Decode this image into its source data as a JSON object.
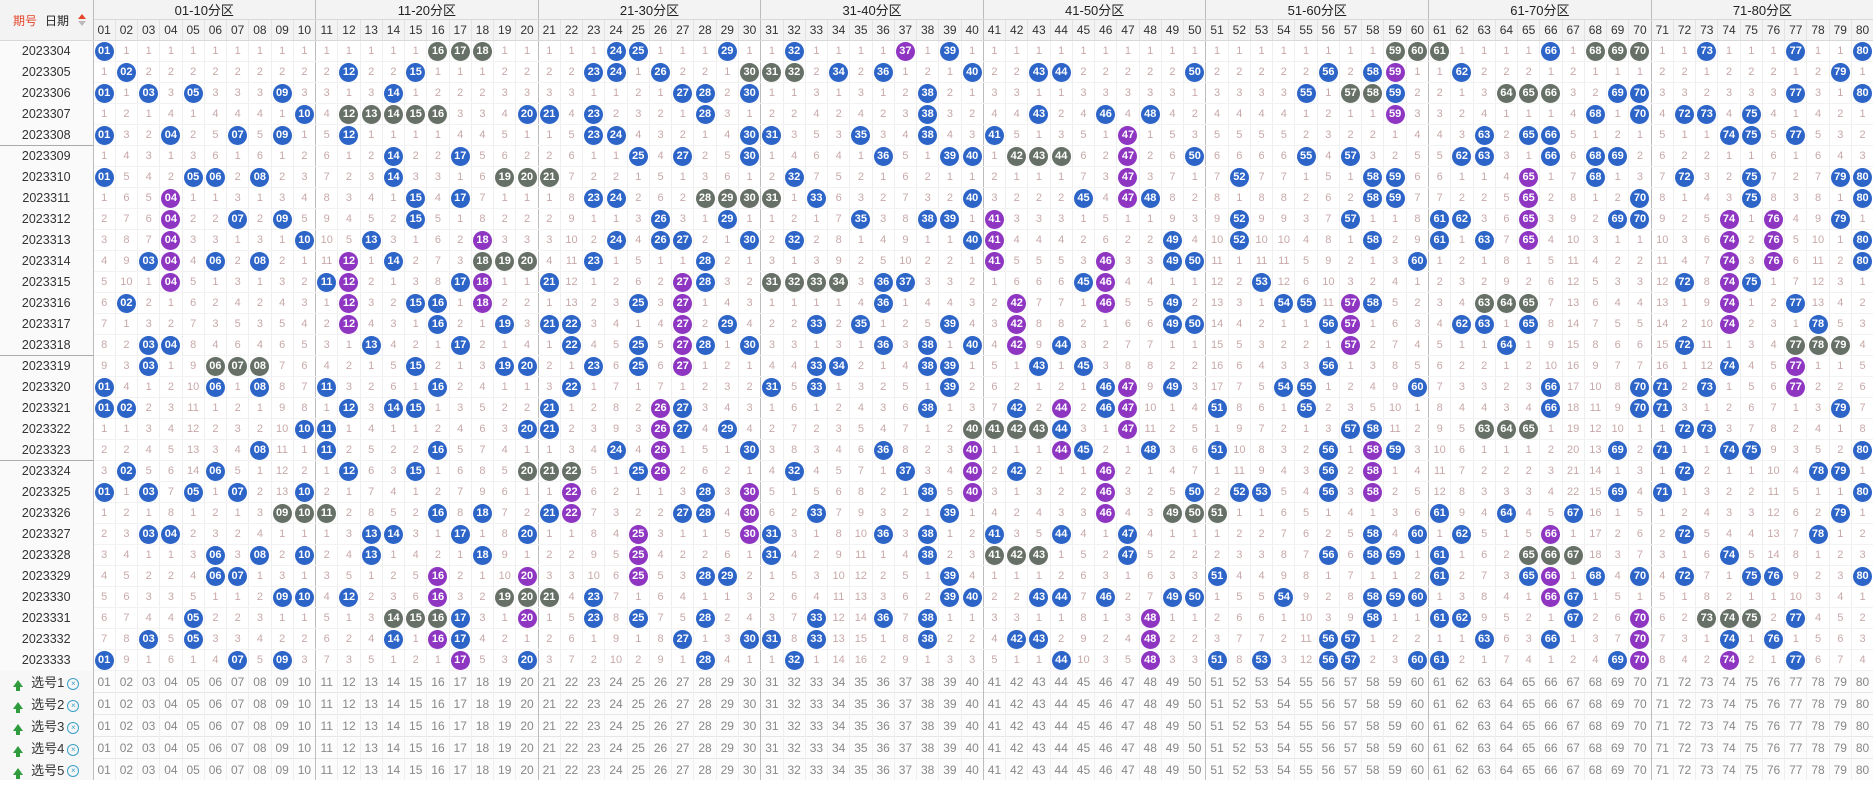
{
  "header": {
    "tab_period": "期号",
    "tab_date": "日期"
  },
  "zones": [
    "01-10分区",
    "11-20分区",
    "21-30分区",
    "31-40分区",
    "41-50分区",
    "51-60分区",
    "61-70分区",
    "71-80分区"
  ],
  "columns": [
    "01",
    "02",
    "03",
    "04",
    "05",
    "06",
    "07",
    "08",
    "09",
    "10",
    "11",
    "12",
    "13",
    "14",
    "15",
    "16",
    "17",
    "18",
    "19",
    "20",
    "21",
    "22",
    "23",
    "24",
    "25",
    "26",
    "27",
    "28",
    "29",
    "30",
    "31",
    "32",
    "33",
    "34",
    "35",
    "36",
    "37",
    "38",
    "39",
    "40",
    "41",
    "42",
    "43",
    "44",
    "45",
    "46",
    "47",
    "48",
    "49",
    "50",
    "51",
    "52",
    "53",
    "54",
    "55",
    "56",
    "57",
    "58",
    "59",
    "60",
    "61",
    "62",
    "63",
    "64",
    "65",
    "66",
    "67",
    "68",
    "69",
    "70",
    "71",
    "72",
    "73",
    "74",
    "75",
    "76",
    "77",
    "78",
    "79",
    "80"
  ],
  "colors": {
    "blue": "#2c64c8",
    "purple": "#8e35c2",
    "gray": "#667066",
    "miss_text": "#c8a8a8"
  },
  "rows": [
    {
      "p": "2023304",
      "balls": {
        "01": "b",
        "16": "g",
        "17": "g",
        "18": "g",
        "24": "b",
        "25": "b",
        "29": "b",
        "32": "b",
        "37": "p",
        "39": "b",
        "59": "g",
        "60": "g",
        "61": "g",
        "66": "b",
        "68": "g",
        "69": "g",
        "70": "g",
        "73": "b",
        "77": "b",
        "80": "b"
      }
    },
    {
      "p": "2023305",
      "balls": {
        "02": "b",
        "12": "b",
        "15": "b",
        "23": "b",
        "24": "b",
        "26": "b",
        "30": "g",
        "31": "g",
        "32": "g",
        "34": "b",
        "36": "b",
        "40": "b",
        "43": "b",
        "44": "b",
        "50": "b",
        "56": "b",
        "58": "b",
        "59": "p",
        "62": "b",
        "79": "b"
      }
    },
    {
      "p": "2023306",
      "balls": {
        "01": "b",
        "03": "b",
        "05": "b",
        "09": "b",
        "14": "b",
        "27": "b",
        "28": "b",
        "30": "b",
        "38": "b",
        "55": "b",
        "57": "g",
        "58": "g",
        "59": "b",
        "64": "g",
        "65": "g",
        "66": "g",
        "69": "b",
        "70": "b",
        "77": "b",
        "80": "b"
      }
    },
    {
      "p": "2023307",
      "balls": {
        "10": "b",
        "12": "g",
        "13": "g",
        "14": "g",
        "15": "g",
        "16": "g",
        "20": "b",
        "21": "b",
        "23": "b",
        "28": "b",
        "38": "b",
        "43": "b",
        "46": "b",
        "48": "b",
        "59": "p",
        "68": "b",
        "70": "b",
        "72": "b",
        "73": "b",
        "75": "b"
      }
    },
    {
      "p": "2023308",
      "balls": {
        "01": "b",
        "04": "b",
        "07": "b",
        "09": "b",
        "12": "b",
        "23": "b",
        "24": "b",
        "30": "b",
        "31": "b",
        "35": "b",
        "38": "b",
        "41": "b",
        "47": "p",
        "63": "b",
        "65": "b",
        "66": "b",
        "74": "b",
        "75": "b",
        "77": "b"
      }
    },
    {
      "p": "2023309",
      "sep": true,
      "balls": {
        "14": "b",
        "17": "b",
        "25": "b",
        "27": "b",
        "30": "b",
        "36": "b",
        "39": "b",
        "40": "b",
        "42": "g",
        "43": "g",
        "44": "g",
        "47": "p",
        "50": "b",
        "55": "b",
        "57": "b",
        "62": "b",
        "63": "b",
        "66": "b",
        "68": "b",
        "69": "b"
      }
    },
    {
      "p": "2023310",
      "balls": {
        "01": "b",
        "05": "b",
        "06": "b",
        "08": "b",
        "14": "b",
        "19": "g",
        "20": "g",
        "21": "g",
        "32": "b",
        "47": "p",
        "52": "b",
        "58": "b",
        "59": "b",
        "65": "p",
        "68": "b",
        "72": "b",
        "75": "b",
        "79": "b",
        "80": "b"
      }
    },
    {
      "p": "2023311",
      "balls": {
        "04": "p",
        "15": "b",
        "17": "b",
        "23": "b",
        "24": "b",
        "28": "g",
        "29": "g",
        "30": "g",
        "31": "g",
        "33": "b",
        "40": "b",
        "45": "b",
        "47": "p",
        "48": "b",
        "58": "b",
        "59": "b",
        "65": "p",
        "70": "b",
        "75": "b",
        "80": "b"
      }
    },
    {
      "p": "2023312",
      "balls": {
        "04": "p",
        "07": "b",
        "09": "b",
        "15": "b",
        "26": "b",
        "29": "b",
        "35": "b",
        "38": "b",
        "39": "b",
        "41": "p",
        "52": "b",
        "57": "b",
        "61": "b",
        "62": "b",
        "65": "p",
        "69": "b",
        "70": "b",
        "74": "p",
        "76": "p",
        "79": "b"
      }
    },
    {
      "p": "2023313",
      "balls": {
        "04": "p",
        "10": "b",
        "13": "b",
        "18": "p",
        "24": "b",
        "26": "b",
        "27": "b",
        "30": "b",
        "32": "b",
        "40": "b",
        "41": "p",
        "49": "b",
        "52": "b",
        "58": "b",
        "61": "b",
        "63": "b",
        "65": "p",
        "74": "p",
        "76": "p",
        "80": "b"
      }
    },
    {
      "p": "2023314",
      "balls": {
        "03": "b",
        "04": "p",
        "06": "b",
        "08": "b",
        "12": "p",
        "14": "b",
        "18": "g",
        "19": "g",
        "20": "g",
        "23": "b",
        "28": "b",
        "41": "p",
        "46": "p",
        "49": "b",
        "50": "b",
        "60": "b",
        "74": "p",
        "76": "p",
        "80": "b"
      }
    },
    {
      "p": "2023315",
      "balls": {
        "04": "p",
        "11": "b",
        "12": "p",
        "17": "b",
        "18": "p",
        "21": "b",
        "27": "p",
        "28": "b",
        "31": "g",
        "32": "g",
        "33": "g",
        "34": "g",
        "36": "b",
        "37": "b",
        "45": "b",
        "46": "p",
        "53": "b",
        "72": "b",
        "74": "p",
        "75": "b"
      }
    },
    {
      "p": "2023316",
      "balls": {
        "02": "b",
        "12": "p",
        "15": "b",
        "16": "b",
        "18": "p",
        "25": "b",
        "27": "p",
        "36": "b",
        "42": "p",
        "46": "p",
        "49": "b",
        "54": "b",
        "55": "b",
        "57": "p",
        "58": "b",
        "63": "g",
        "64": "g",
        "65": "g",
        "74": "p",
        "77": "b"
      }
    },
    {
      "p": "2023317",
      "balls": {
        "12": "p",
        "16": "b",
        "19": "b",
        "21": "b",
        "22": "b",
        "27": "p",
        "29": "b",
        "33": "b",
        "35": "b",
        "39": "b",
        "42": "p",
        "49": "b",
        "50": "b",
        "56": "b",
        "57": "p",
        "62": "b",
        "63": "b",
        "65": "b",
        "74": "p",
        "78": "b"
      }
    },
    {
      "p": "2023318",
      "balls": {
        "03": "b",
        "04": "b",
        "13": "b",
        "17": "b",
        "22": "b",
        "25": "b",
        "27": "p",
        "28": "b",
        "30": "b",
        "36": "b",
        "38": "b",
        "40": "b",
        "42": "p",
        "44": "b",
        "57": "p",
        "64": "b",
        "72": "b",
        "77": "g",
        "78": "g",
        "79": "g"
      }
    },
    {
      "p": "2023319",
      "sep": true,
      "balls": {
        "03": "b",
        "06": "g",
        "07": "g",
        "08": "g",
        "15": "b",
        "19": "b",
        "20": "b",
        "23": "b",
        "25": "b",
        "27": "p",
        "33": "b",
        "34": "b",
        "38": "b",
        "39": "b",
        "43": "b",
        "45": "b",
        "56": "b",
        "74": "b",
        "77": "p"
      }
    },
    {
      "p": "2023320",
      "balls": {
        "01": "b",
        "06": "b",
        "08": "b",
        "11": "b",
        "16": "b",
        "22": "b",
        "31": "b",
        "33": "b",
        "39": "b",
        "46": "b",
        "47": "p",
        "49": "b",
        "54": "b",
        "55": "b",
        "60": "b",
        "66": "b",
        "70": "b",
        "71": "b",
        "73": "b",
        "77": "p"
      }
    },
    {
      "p": "2023321",
      "balls": {
        "01": "b",
        "02": "b",
        "12": "b",
        "14": "b",
        "15": "b",
        "21": "b",
        "26": "p",
        "27": "b",
        "38": "b",
        "42": "b",
        "44": "p",
        "46": "b",
        "47": "p",
        "51": "b",
        "55": "b",
        "66": "b",
        "70": "b",
        "71": "b",
        "79": "b"
      }
    },
    {
      "p": "2023322",
      "balls": {
        "10": "b",
        "11": "b",
        "20": "b",
        "21": "b",
        "26": "p",
        "27": "b",
        "29": "b",
        "40": "g",
        "41": "g",
        "42": "g",
        "43": "g",
        "44": "b",
        "47": "p",
        "57": "b",
        "58": "b",
        "63": "g",
        "64": "g",
        "65": "g",
        "72": "b",
        "73": "b"
      }
    },
    {
      "p": "2023323",
      "balls": {
        "08": "b",
        "11": "b",
        "16": "b",
        "24": "b",
        "26": "p",
        "30": "b",
        "36": "b",
        "40": "p",
        "44": "p",
        "45": "b",
        "48": "b",
        "51": "b",
        "56": "b",
        "58": "p",
        "59": "b",
        "69": "b",
        "71": "b",
        "74": "b",
        "75": "b",
        "80": "b"
      }
    },
    {
      "p": "2023324",
      "sep": true,
      "balls": {
        "02": "b",
        "06": "b",
        "12": "b",
        "15": "b",
        "20": "g",
        "21": "g",
        "22": "g",
        "25": "b",
        "26": "p",
        "32": "b",
        "37": "b",
        "40": "p",
        "42": "b",
        "46": "p",
        "56": "b",
        "58": "p",
        "72": "b",
        "78": "b",
        "79": "b"
      }
    },
    {
      "p": "2023325",
      "balls": {
        "01": "b",
        "03": "b",
        "05": "b",
        "07": "b",
        "10": "b",
        "22": "p",
        "28": "b",
        "30": "p",
        "38": "b",
        "40": "p",
        "46": "p",
        "50": "b",
        "52": "b",
        "53": "b",
        "56": "b",
        "58": "p",
        "69": "b",
        "71": "b",
        "80": "b"
      }
    },
    {
      "p": "2023326",
      "balls": {
        "09": "g",
        "10": "g",
        "11": "g",
        "16": "b",
        "18": "b",
        "21": "b",
        "22": "p",
        "27": "b",
        "28": "b",
        "30": "p",
        "33": "b",
        "39": "b",
        "46": "p",
        "49": "g",
        "50": "g",
        "51": "g",
        "61": "b",
        "64": "b",
        "67": "b",
        "79": "b"
      }
    },
    {
      "p": "2023327",
      "balls": {
        "03": "b",
        "04": "b",
        "13": "b",
        "14": "b",
        "17": "b",
        "20": "b",
        "25": "p",
        "30": "p",
        "31": "b",
        "36": "b",
        "38": "b",
        "41": "b",
        "44": "b",
        "47": "b",
        "58": "b",
        "60": "b",
        "62": "b",
        "66": "p",
        "72": "b",
        "78": "b"
      }
    },
    {
      "p": "2023328",
      "balls": {
        "06": "b",
        "08": "b",
        "10": "b",
        "13": "b",
        "18": "b",
        "25": "p",
        "31": "b",
        "38": "b",
        "41": "g",
        "42": "g",
        "43": "g",
        "47": "b",
        "56": "b",
        "58": "b",
        "59": "b",
        "61": "b",
        "65": "g",
        "66": "g",
        "67": "g",
        "74": "b"
      }
    },
    {
      "p": "2023329",
      "balls": {
        "06": "b",
        "07": "b",
        "16": "p",
        "20": "p",
        "25": "p",
        "28": "b",
        "29": "b",
        "39": "b",
        "51": "b",
        "61": "b",
        "65": "b",
        "66": "p",
        "68": "b",
        "70": "b",
        "72": "b",
        "75": "b",
        "76": "b",
        "80": "b"
      }
    },
    {
      "p": "2023330",
      "balls": {
        "09": "b",
        "10": "b",
        "12": "b",
        "16": "p",
        "19": "g",
        "20": "g",
        "21": "g",
        "23": "b",
        "39": "b",
        "40": "b",
        "43": "b",
        "44": "b",
        "46": "b",
        "49": "b",
        "50": "b",
        "54": "b",
        "58": "b",
        "59": "b",
        "60": "b",
        "66": "p",
        "67": "b"
      }
    },
    {
      "p": "2023331",
      "balls": {
        "05": "b",
        "14": "g",
        "15": "g",
        "16": "g",
        "17": "b",
        "20": "p",
        "23": "b",
        "25": "b",
        "28": "b",
        "33": "b",
        "36": "b",
        "38": "b",
        "48": "p",
        "58": "b",
        "61": "b",
        "62": "b",
        "67": "b",
        "70": "p",
        "73": "g",
        "74": "g",
        "75": "g",
        "77": "b"
      }
    },
    {
      "p": "2023332",
      "balls": {
        "03": "b",
        "05": "b",
        "14": "b",
        "16": "p",
        "17": "b",
        "27": "b",
        "30": "b",
        "31": "b",
        "33": "b",
        "38": "b",
        "42": "b",
        "43": "b",
        "48": "p",
        "56": "b",
        "57": "b",
        "63": "b",
        "66": "b",
        "70": "p",
        "74": "b",
        "76": "b"
      }
    },
    {
      "p": "2023333",
      "balls": {
        "01": "b",
        "07": "b",
        "09": "b",
        "17": "p",
        "20": "b",
        "28": "b",
        "32": "b",
        "44": "b",
        "48": "p",
        "51": "b",
        "53": "b",
        "56": "b",
        "57": "b",
        "60": "b",
        "61": "b",
        "69": "b",
        "70": "p",
        "74": "p",
        "77": "b"
      }
    }
  ],
  "selectors": [
    {
      "label": "选号1"
    },
    {
      "label": "选号2"
    },
    {
      "label": "选号3"
    },
    {
      "label": "选号4"
    },
    {
      "label": "选号5"
    }
  ]
}
